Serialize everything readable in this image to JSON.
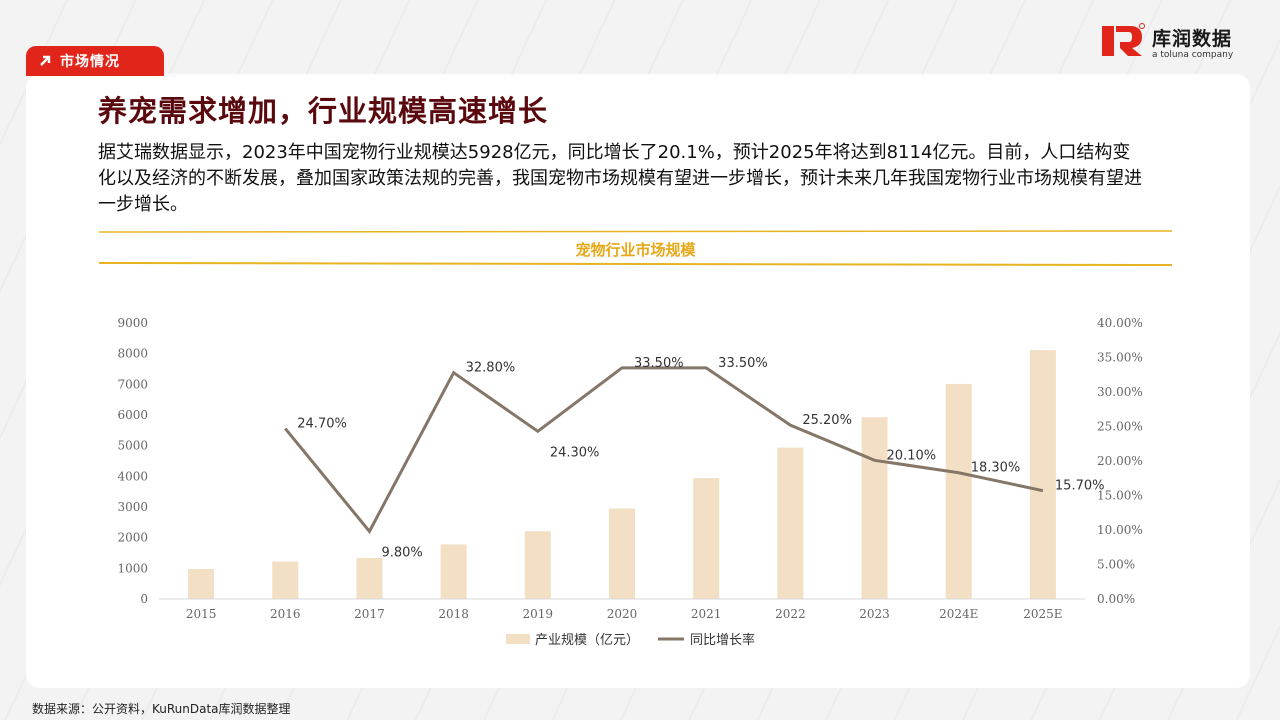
{
  "header": {
    "tag_label": "市场情况",
    "logo_name": "库润数据",
    "logo_sub": "a toluna company",
    "brand_color": "#e1251b"
  },
  "main": {
    "title": "养宠需求增加，行业规模高速增长",
    "description": "据艾瑞数据显示，2023年中国宠物行业规模达5928亿元，同比增长了20.1%，预计2025年将达到8114亿元。目前，人口结构变化以及经济的不断发展，叠加国家政策法规的完善，我国宠物市场规模有望进一步增长，预计未来几年我国宠物行业市场规模有望进一步增长。"
  },
  "footer": {
    "source": "数据来源：公开资料，KuRunData库润数据整理"
  },
  "chart_data": {
    "type": "bar",
    "title": "宠物行业市场规模",
    "categories": [
      "2015",
      "2016",
      "2017",
      "2018",
      "2019",
      "2020",
      "2021",
      "2022",
      "2023",
      "2024E",
      "2025E"
    ],
    "series": [
      {
        "name": "产业规模（亿元）",
        "type": "bar",
        "axis": "left",
        "color": "#f2dfc4",
        "values": [
          978,
          1220,
          1340,
          1780,
          2210,
          2950,
          3940,
          4936,
          5928,
          7013,
          8114
        ]
      },
      {
        "name": "同比增长率",
        "type": "line",
        "axis": "right",
        "color": "#857668",
        "values": [
          null,
          24.7,
          9.8,
          32.8,
          24.3,
          33.5,
          33.5,
          25.2,
          20.1,
          18.3,
          15.7
        ],
        "labels": [
          null,
          "24.70%",
          "9.80%",
          "32.80%",
          "24.30%",
          "33.50%",
          "33.50%",
          "25.20%",
          "20.10%",
          "18.30%",
          "15.70%"
        ]
      }
    ],
    "y_left": {
      "min": 0,
      "max": 9000,
      "ticks": [
        "0",
        "1000",
        "2000",
        "3000",
        "4000",
        "5000",
        "6000",
        "7000",
        "8000",
        "9000"
      ]
    },
    "y_right": {
      "min": 0,
      "max": 40,
      "ticks": [
        "0.00%",
        "5.00%",
        "10.00%",
        "15.00%",
        "20.00%",
        "25.00%",
        "30.00%",
        "35.00%",
        "40.00%"
      ]
    },
    "grid": false,
    "legend_position": "bottom",
    "accent_color": "#e6b422"
  }
}
